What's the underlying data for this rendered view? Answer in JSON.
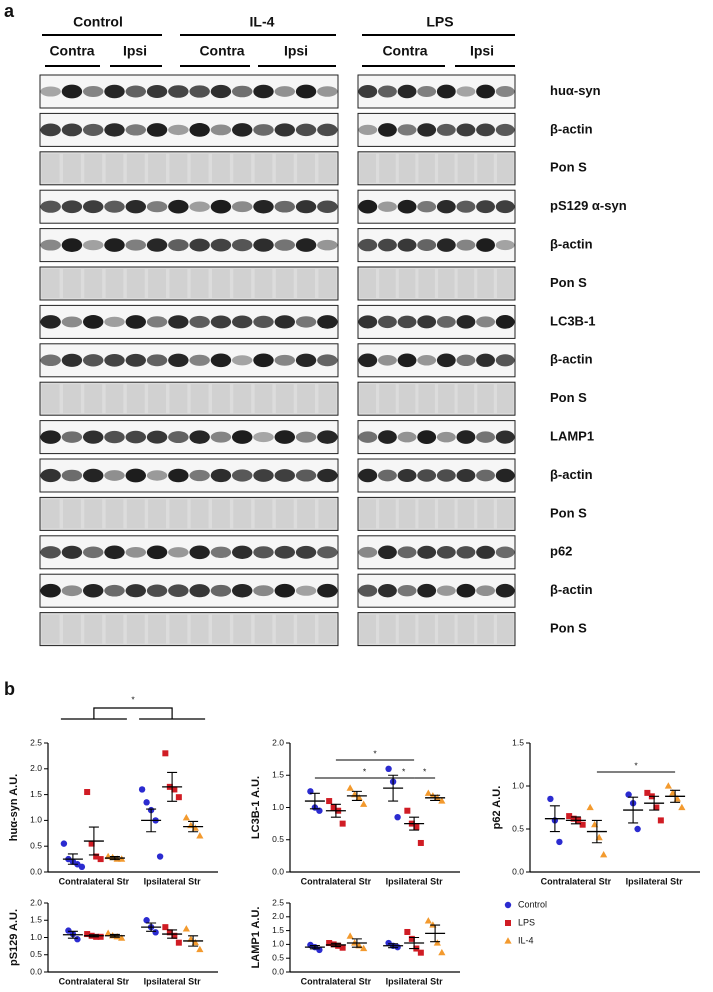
{
  "panel_a": {
    "label": "a",
    "groups": [
      {
        "name": "Control",
        "subgroups": [
          "Contra",
          "Ipsi"
        ]
      },
      {
        "name": "IL-4",
        "subgroups": [
          "Contra",
          "Ipsi"
        ]
      },
      {
        "name": "LPS",
        "subgroups": [
          "Contra",
          "Ipsi"
        ]
      }
    ],
    "blots": [
      "huα-syn",
      "β-actin",
      "Pon S",
      "pS129 α-syn",
      "β-actin",
      "Pon S",
      "LC3B-1",
      "β-actin",
      "Pon S",
      "LAMP1",
      "β-actin",
      "Pon S",
      "p62",
      "β-actin",
      "Pon S"
    ]
  },
  "panel_b": {
    "label": "b"
  },
  "chart_data": [
    {
      "type": "dot",
      "y_label": "huα-syn A.U.",
      "categories": [
        "Contralateral Str",
        "Ipsilateral Str"
      ],
      "ylim": [
        0,
        2.5
      ],
      "yticks": [
        {
          "value": 0,
          "label": "0.0"
        },
        {
          "value": 0.5,
          "label": "0.5"
        },
        {
          "value": 1,
          "label": "1.0"
        },
        {
          "value": 1.5,
          "label": "1.5"
        },
        {
          "value": 2,
          "label": "2.0"
        },
        {
          "value": 2.5,
          "label": "2.5"
        }
      ],
      "annotations": [
        "*"
      ],
      "series": [
        {
          "name": "Control",
          "color": "#2b2bd0",
          "marker": "circle",
          "values": [
            0.25,
            1.0
          ],
          "errors": [
            0.1,
            0.22
          ],
          "points": [
            [
              0.55,
              0.25,
              0.2,
              0.15,
              0.1
            ],
            [
              1.6,
              1.35,
              1.2,
              1.0,
              0.3
            ]
          ]
        },
        {
          "name": "LPS",
          "color": "#d01c24",
          "marker": "square",
          "values": [
            0.6,
            1.65
          ],
          "errors": [
            0.27,
            0.28
          ],
          "points": [
            [
              1.55,
              0.55,
              0.3,
              0.25
            ],
            [
              2.3,
              1.65,
              1.6,
              1.45
            ]
          ]
        },
        {
          "name": "IL-4",
          "color": "#f39a2e",
          "marker": "triangle",
          "values": [
            0.27,
            0.88
          ],
          "errors": [
            0.03,
            0.1
          ],
          "points": [
            [
              0.3,
              0.28,
              0.25,
              0.25
            ],
            [
              1.05,
              0.9,
              0.85,
              0.7
            ]
          ]
        }
      ]
    },
    {
      "type": "dot",
      "y_label": "LC3B-1 A.U.",
      "categories": [
        "Contralateral Str",
        "Ipsilateral Str"
      ],
      "ylim": [
        0,
        2
      ],
      "yticks": [
        {
          "value": 0,
          "label": "0.0"
        },
        {
          "value": 0.5,
          "label": "0.5"
        },
        {
          "value": 1,
          "label": "1.0"
        },
        {
          "value": 1.5,
          "label": "1.5"
        },
        {
          "value": 2,
          "label": "2.0"
        }
      ],
      "annotations": [
        "*",
        "*",
        "*",
        "*"
      ],
      "series": [
        {
          "color": "#2b2bd0",
          "marker": "circle",
          "values": [
            1.1,
            1.3
          ],
          "errors": [
            0.12,
            0.2
          ],
          "points": [
            [
              1.25,
              1.0,
              0.95
            ],
            [
              1.6,
              1.4,
              0.85
            ]
          ]
        },
        {
          "color": "#d01c24",
          "marker": "square",
          "values": [
            0.95,
            0.75
          ],
          "errors": [
            0.1,
            0.1
          ],
          "points": [
            [
              1.1,
              1.0,
              0.95,
              0.75
            ],
            [
              0.95,
              0.75,
              0.7,
              0.45
            ]
          ]
        },
        {
          "color": "#f39a2e",
          "marker": "triangle",
          "values": [
            1.18,
            1.15
          ],
          "errors": [
            0.07,
            0.04
          ],
          "points": [
            [
              1.3,
              1.2,
              1.15,
              1.05
            ],
            [
              1.22,
              1.18,
              1.15,
              1.1
            ]
          ]
        }
      ]
    },
    {
      "type": "dot",
      "y_label": "p62 A.U.",
      "categories": [
        "Contralateral Str",
        "Ipsilateral Str"
      ],
      "ylim": [
        0,
        1.5
      ],
      "yticks": [
        {
          "value": 0,
          "label": "0.0"
        },
        {
          "value": 0.5,
          "label": "0.5"
        },
        {
          "value": 1,
          "label": "1.0"
        },
        {
          "value": 1.5,
          "label": "1.5"
        }
      ],
      "annotations": [
        "*"
      ],
      "series": [
        {
          "color": "#2b2bd0",
          "marker": "circle",
          "values": [
            0.62,
            0.72
          ],
          "errors": [
            0.15,
            0.15
          ],
          "points": [
            [
              0.85,
              0.6,
              0.35
            ],
            [
              0.9,
              0.8,
              0.5
            ]
          ]
        },
        {
          "color": "#d01c24",
          "marker": "square",
          "values": [
            0.6,
            0.8
          ],
          "errors": [
            0.04,
            0.08
          ],
          "points": [
            [
              0.65,
              0.62,
              0.6,
              0.55
            ],
            [
              0.92,
              0.88,
              0.75,
              0.6
            ]
          ]
        },
        {
          "color": "#f39a2e",
          "marker": "triangle",
          "values": [
            0.47,
            0.88
          ],
          "errors": [
            0.13,
            0.07
          ],
          "points": [
            [
              0.75,
              0.55,
              0.4,
              0.2
            ],
            [
              1.0,
              0.92,
              0.85,
              0.75
            ]
          ]
        }
      ]
    },
    {
      "type": "dot",
      "y_label": "pS129 A.U.",
      "categories": [
        "Contralateral Str",
        "Ipsilateral Str"
      ],
      "ylim": [
        0,
        2
      ],
      "yticks": [
        {
          "value": 0,
          "label": "0.0"
        },
        {
          "value": 0.5,
          "label": "0.5"
        },
        {
          "value": 1,
          "label": "1.0"
        },
        {
          "value": 1.5,
          "label": "1.5"
        },
        {
          "value": 2,
          "label": "2.0"
        }
      ],
      "annotations": [],
      "series": [
        {
          "color": "#2b2bd0",
          "marker": "circle",
          "values": [
            1.08,
            1.3
          ],
          "errors": [
            0.1,
            0.12
          ],
          "points": [
            [
              1.2,
              1.1,
              0.95
            ],
            [
              1.5,
              1.3,
              1.15
            ]
          ]
        },
        {
          "color": "#d01c24",
          "marker": "square",
          "values": [
            1.05,
            1.1
          ],
          "errors": [
            0.03,
            0.12
          ],
          "points": [
            [
              1.1,
              1.05,
              1.02,
              1.02
            ],
            [
              1.3,
              1.15,
              1.05,
              0.85
            ]
          ]
        },
        {
          "color": "#f39a2e",
          "marker": "triangle",
          "values": [
            1.05,
            0.9
          ],
          "errors": [
            0.04,
            0.15
          ],
          "points": [
            [
              1.12,
              1.05,
              1.02,
              0.98
            ],
            [
              1.25,
              0.95,
              0.85,
              0.65
            ]
          ]
        }
      ]
    },
    {
      "type": "dot",
      "y_label": "LAMP1 A.U.",
      "categories": [
        "Contralateral Str",
        "Ipsilateral Str"
      ],
      "ylim": [
        0,
        2.5
      ],
      "yticks": [
        {
          "value": 0,
          "label": "0.0"
        },
        {
          "value": 0.5,
          "label": "0.5"
        },
        {
          "value": 1,
          "label": "1.0"
        },
        {
          "value": 1.5,
          "label": "1.5"
        },
        {
          "value": 2,
          "label": "2.0"
        },
        {
          "value": 2.5,
          "label": "2.5"
        }
      ],
      "annotations": [],
      "series": [
        {
          "color": "#2b2bd0",
          "marker": "circle",
          "values": [
            0.9,
            0.95
          ],
          "errors": [
            0.06,
            0.07
          ],
          "points": [
            [
              0.98,
              0.9,
              0.8
            ],
            [
              1.05,
              0.95,
              0.9
            ]
          ]
        },
        {
          "color": "#d01c24",
          "marker": "square",
          "values": [
            0.98,
            1.05
          ],
          "errors": [
            0.06,
            0.2
          ],
          "points": [
            [
              1.05,
              1.0,
              0.95,
              0.88
            ],
            [
              1.45,
              1.2,
              0.85,
              0.7
            ]
          ]
        },
        {
          "color": "#f39a2e",
          "marker": "triangle",
          "values": [
            1.05,
            1.4
          ],
          "errors": [
            0.15,
            0.3
          ],
          "points": [
            [
              1.3,
              1.05,
              0.95,
              0.85
            ],
            [
              1.85,
              1.7,
              1.05,
              0.7
            ]
          ]
        }
      ]
    }
  ]
}
